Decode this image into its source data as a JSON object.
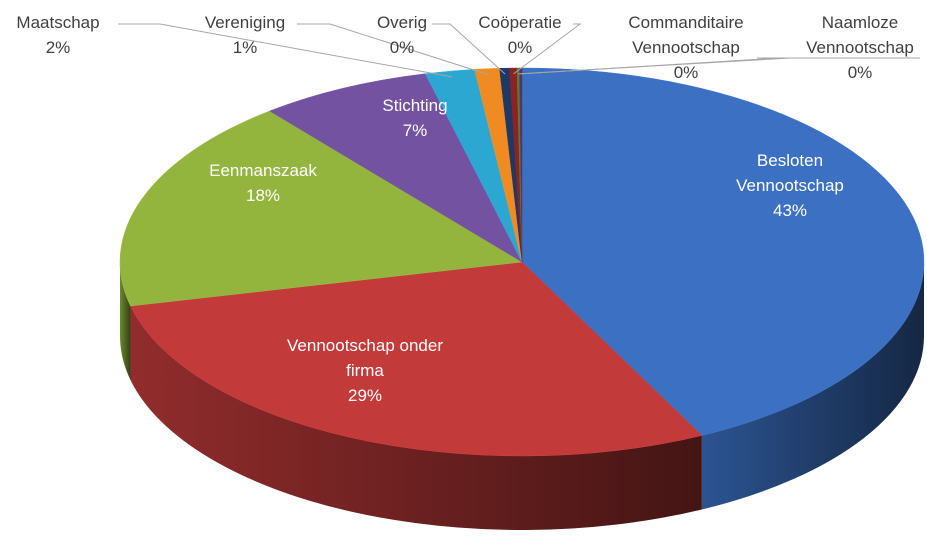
{
  "chart_data": {
    "type": "pie3d",
    "categories": [
      "Besloten Vennootschap",
      "Vennootschap onder firma",
      "Eenmanszaak",
      "Stichting",
      "Maatschap",
      "Vereniging",
      "Overig",
      "Coöperatie",
      "Commanditaire Vennootschap",
      "Naamloze Vennootschap"
    ],
    "values": [
      43,
      29,
      18,
      7,
      2,
      1,
      0.4,
      0.3,
      0.1,
      0.1
    ],
    "value_labels": [
      "43%",
      "29%",
      "18%",
      "7%",
      "2%",
      "1%",
      "0%",
      "0%",
      "0%",
      "0%"
    ],
    "colors": [
      "#3b70c2",
      "#c23b3a",
      "#93b53e",
      "#7353a1",
      "#2ba7d2",
      "#f08a22",
      "#1f3864",
      "#8c2222",
      "#5d7a2a",
      "#4b3570"
    ]
  }
}
